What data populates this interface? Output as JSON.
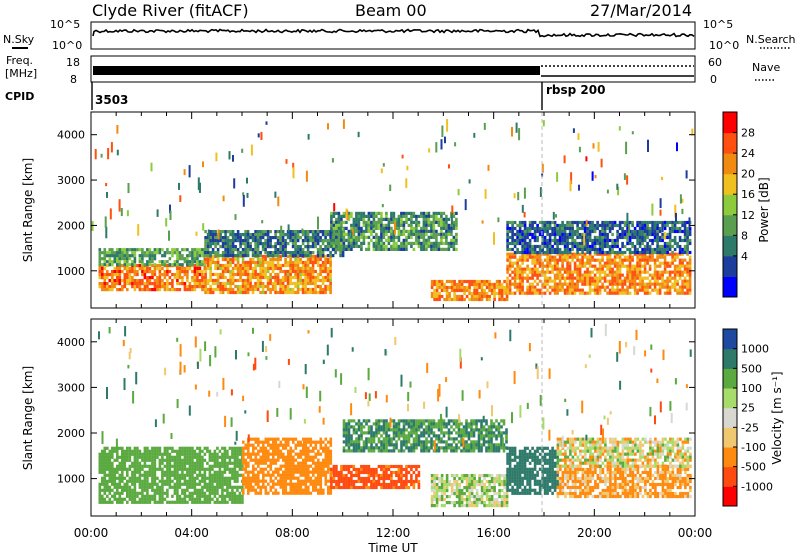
{
  "header": {
    "station": "Clyde River (fitACF)",
    "beam": "Beam 00",
    "date": "27/Mar/2014"
  },
  "noise_panel": {
    "left_label": "N.Sky",
    "right_label": "N.Search",
    "left_ticks": [
      "10^5",
      "10^0"
    ],
    "right_ticks": [
      "10^5",
      "10^0"
    ]
  },
  "freq_panel": {
    "label_line1": "Freq.",
    "label_line2": "[MHz]",
    "left_ticks": [
      "18",
      "8"
    ],
    "right_ticks": [
      "60",
      "0"
    ],
    "right_label": "Nave"
  },
  "cpid": {
    "label": "CPID",
    "entries": [
      "3503",
      "rbsp 200"
    ]
  },
  "x_axis": {
    "ticks": [
      "00:00",
      "04:00",
      "08:00",
      "12:00",
      "16:00",
      "20:00",
      "00:00"
    ],
    "label": "Time UT"
  },
  "chart_data": [
    {
      "type": "heatmap",
      "panel": "power",
      "ylabel": "Slant Range [km]",
      "yticks": [
        "4000",
        "3000",
        "2000",
        "1000"
      ],
      "ylim": [
        180,
        4500
      ],
      "xlim": [
        0,
        24
      ],
      "colorbar": {
        "label": "Power [dB]",
        "ticks": [
          "28",
          "24",
          "20",
          "16",
          "12",
          "8",
          "4"
        ],
        "colors": [
          "#0000ff",
          "#1d3d9c",
          "#2d7a6a",
          "#5a9e50",
          "#8ccc3c",
          "#f0c020",
          "#f08a10",
          "#ff5010",
          "#ff0000"
        ]
      },
      "bands": [
        {
          "t0": 0.3,
          "t1": 4.5,
          "r0": 600,
          "r1": 1150,
          "v": 26
        },
        {
          "t0": 0.3,
          "t1": 4.5,
          "r0": 1150,
          "r1": 1500,
          "v": 14
        },
        {
          "t0": 4.5,
          "t1": 9.5,
          "r0": 550,
          "r1": 1350,
          "v": 24
        },
        {
          "t0": 4.5,
          "t1": 10.0,
          "r0": 1350,
          "r1": 1900,
          "v": 11
        },
        {
          "t0": 9.5,
          "t1": 14.5,
          "r0": 1500,
          "r1": 2300,
          "v": 13
        },
        {
          "t0": 13.5,
          "t1": 16.5,
          "r0": 400,
          "r1": 800,
          "v": 25
        },
        {
          "t0": 16.5,
          "t1": 23.8,
          "r0": 500,
          "r1": 1400,
          "v": 25
        },
        {
          "t0": 16.5,
          "t1": 23.8,
          "r0": 1400,
          "r1": 2100,
          "v": 9
        }
      ]
    },
    {
      "type": "heatmap",
      "panel": "velocity",
      "ylabel": "Slant Range [km]",
      "yticks": [
        "4000",
        "3000",
        "2000",
        "1000"
      ],
      "ylim": [
        180,
        4500
      ],
      "xlim": [
        0,
        24
      ],
      "colorbar": {
        "label": "Velocity [m s⁻¹]",
        "ticks": [
          "1000",
          "500",
          "100",
          "25",
          "-25",
          "-100",
          "-500",
          "-1000"
        ],
        "colors": [
          "#ff0000",
          "#ff4a10",
          "#ff8a10",
          "#f0c870",
          "#d8d8d0",
          "#a8dc6a",
          "#5aaa40",
          "#2d7a6a",
          "#1d4aa0"
        ]
      },
      "bands": [
        {
          "t0": 0.3,
          "t1": 6.0,
          "r0": 500,
          "r1": 1700,
          "v": 300
        },
        {
          "t0": 6.0,
          "t1": 9.5,
          "r0": 700,
          "r1": 1900,
          "v": -350
        },
        {
          "t0": 9.5,
          "t1": 13.0,
          "r0": 800,
          "r1": 1300,
          "v": -600
        },
        {
          "t0": 10.0,
          "t1": 16.5,
          "r0": 1600,
          "r1": 2300,
          "v": 500
        },
        {
          "t0": 13.5,
          "t1": 16.5,
          "r0": 400,
          "r1": 1100,
          "v": 60
        },
        {
          "t0": 16.5,
          "t1": 18.5,
          "r0": 700,
          "r1": 1700,
          "v": 800
        },
        {
          "t0": 18.5,
          "t1": 23.8,
          "r0": 600,
          "r1": 1300,
          "v": -150
        },
        {
          "t0": 18.5,
          "t1": 23.8,
          "r0": 1300,
          "r1": 1900,
          "v": 0
        }
      ]
    }
  ]
}
